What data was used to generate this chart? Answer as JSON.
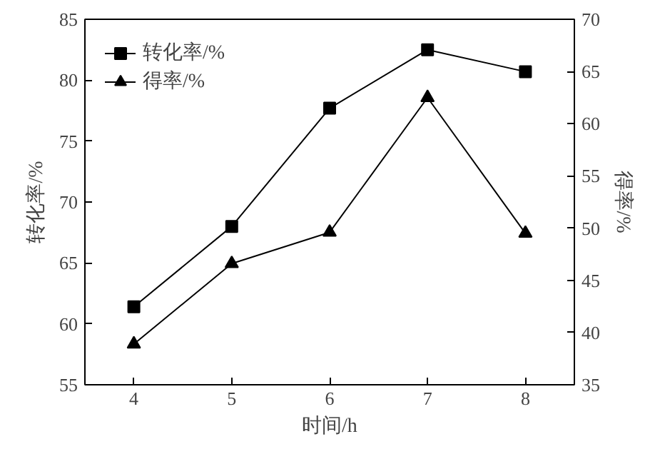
{
  "chart_data": {
    "type": "line",
    "xlabel": "时间/h",
    "ylabel": "转化率/%",
    "y2label": "得率/%",
    "x": [
      4,
      5,
      6,
      7,
      8
    ],
    "series": [
      {
        "name": "转化率/%",
        "color": "#000000",
        "values": [
          61.4,
          68.0,
          77.7,
          82.5,
          80.7
        ],
        "marker": "square"
      },
      {
        "name": "得率/%",
        "color": "#000000",
        "values": [
          38.9,
          46.6,
          49.6,
          62.5,
          49.5
        ],
        "marker": "triangle",
        "axis": "y2"
      }
    ],
    "xlim": [
      3.5,
      8.5
    ],
    "xticks": [
      4,
      5,
      6,
      7,
      8
    ],
    "ylim": [
      55,
      85
    ],
    "yticks": [
      55,
      60,
      65,
      70,
      75,
      80,
      85
    ],
    "y2lim": [
      35,
      70
    ],
    "y2ticks": [
      35,
      40,
      45,
      50,
      55,
      60,
      65,
      70
    ],
    "grid": false,
    "legend": "top left",
    "line_style": "solid"
  }
}
